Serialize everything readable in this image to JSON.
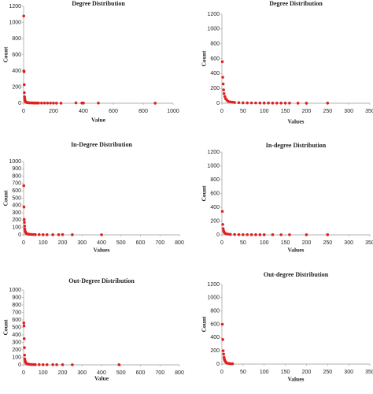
{
  "chart_data": [
    {
      "type": "scatter",
      "title": "Degree Distribution",
      "x_label": "Value",
      "y_label": "Count",
      "color": "#e02020",
      "x": [
        1,
        2,
        3,
        4,
        5,
        6,
        7,
        8,
        9,
        10,
        12,
        14,
        16,
        18,
        20,
        25,
        30,
        35,
        40,
        50,
        60,
        70,
        80,
        90,
        100,
        120,
        140,
        160,
        180,
        200,
        220,
        250,
        350,
        390,
        400,
        500,
        880
      ],
      "values": [
        1080,
        400,
        390,
        230,
        130,
        80,
        60,
        45,
        35,
        28,
        22,
        18,
        15,
        12,
        10,
        8,
        7,
        6,
        5,
        4,
        4,
        3,
        3,
        3,
        2,
        2,
        2,
        2,
        2,
        2,
        1,
        1,
        5,
        3,
        2,
        2,
        1
      ],
      "xlim": [
        0,
        1000
      ],
      "xticks": [
        0,
        200,
        400,
        600,
        800,
        1000
      ],
      "ylim": [
        0,
        1200
      ],
      "yticks": [
        0,
        200,
        400,
        600,
        800,
        1000,
        1200
      ]
    },
    {
      "type": "scatter",
      "title": "Degree Distribution",
      "x_label": "Values",
      "y_label": "Count",
      "color": "#e02020",
      "x": [
        1,
        2,
        3,
        4,
        5,
        7,
        9,
        12,
        15,
        20,
        25,
        30,
        40,
        50,
        60,
        70,
        80,
        90,
        100,
        110,
        120,
        130,
        140,
        150,
        160,
        180,
        200,
        250
      ],
      "values": [
        560,
        350,
        260,
        180,
        130,
        90,
        60,
        40,
        25,
        18,
        14,
        10,
        8,
        6,
        5,
        4,
        4,
        3,
        3,
        3,
        2,
        2,
        2,
        2,
        2,
        1,
        1,
        2
      ],
      "xlim": [
        0,
        350
      ],
      "xticks": [
        0,
        50,
        100,
        150,
        200,
        250,
        300,
        350
      ],
      "ylim": [
        0,
        1200
      ],
      "yticks": [
        0,
        200,
        400,
        600,
        800,
        1000,
        1200
      ]
    },
    {
      "type": "scatter",
      "title": "In-Degree Distribution",
      "x_label": "Values",
      "y_label": "Count",
      "color": "#e02020",
      "x": [
        1,
        2,
        3,
        4,
        5,
        6,
        8,
        10,
        12,
        15,
        20,
        25,
        30,
        40,
        50,
        60,
        80,
        100,
        120,
        150,
        180,
        200,
        250,
        400
      ],
      "values": [
        670,
        380,
        210,
        170,
        120,
        80,
        50,
        35,
        25,
        18,
        12,
        9,
        7,
        5,
        4,
        3,
        3,
        2,
        2,
        2,
        2,
        3,
        2,
        1
      ],
      "xlim": [
        0,
        800
      ],
      "xticks": [
        0,
        100,
        200,
        300,
        400,
        500,
        600,
        700,
        800
      ],
      "ylim": [
        0,
        1000
      ],
      "yticks": [
        0,
        100,
        200,
        300,
        400,
        500,
        600,
        700,
        800,
        900,
        1000
      ]
    },
    {
      "type": "scatter",
      "title": "In-degree Distribution",
      "x_label": "Values",
      "y_label": "Count",
      "color": "#e02020",
      "x": [
        1,
        2,
        3,
        4,
        5,
        7,
        10,
        15,
        20,
        30,
        40,
        50,
        60,
        70,
        80,
        90,
        100,
        120,
        140,
        160,
        200,
        250
      ],
      "values": [
        340,
        150,
        90,
        60,
        40,
        25,
        15,
        10,
        7,
        5,
        4,
        3,
        3,
        2,
        2,
        2,
        2,
        2,
        1,
        1,
        1,
        2
      ],
      "xlim": [
        0,
        350
      ],
      "xticks": [
        0,
        50,
        100,
        150,
        200,
        250,
        300,
        350
      ],
      "ylim": [
        0,
        1200
      ],
      "yticks": [
        0,
        200,
        400,
        600,
        800,
        1000,
        1200
      ]
    },
    {
      "type": "scatter",
      "title": "Out-Degree Distribution",
      "x_label": "Value",
      "y_label": "Count",
      "color": "#e02020",
      "x": [
        1,
        2,
        3,
        4,
        5,
        6,
        8,
        10,
        12,
        15,
        20,
        25,
        30,
        40,
        50,
        60,
        80,
        100,
        120,
        150,
        170,
        200,
        250,
        490
      ],
      "values": [
        560,
        520,
        350,
        230,
        130,
        80,
        50,
        35,
        25,
        18,
        12,
        9,
        7,
        5,
        4,
        3,
        3,
        2,
        2,
        2,
        2,
        2,
        1,
        2
      ],
      "xlim": [
        0,
        800
      ],
      "xticks": [
        0,
        100,
        200,
        300,
        400,
        500,
        600,
        700,
        800
      ],
      "ylim": [
        0,
        1000
      ],
      "yticks": [
        0,
        100,
        200,
        300,
        400,
        500,
        600,
        700,
        800,
        900,
        1000
      ]
    },
    {
      "type": "scatter",
      "title": "Out-degree Distribution",
      "x_label": "Values",
      "y_label": "Count",
      "color": "#e02020",
      "x": [
        1,
        2,
        3,
        4,
        5,
        6,
        7,
        8,
        10,
        12,
        15,
        18,
        20,
        25
      ],
      "values": [
        600,
        370,
        200,
        150,
        100,
        70,
        50,
        40,
        25,
        15,
        10,
        7,
        5,
        5
      ],
      "xlim": [
        0,
        350
      ],
      "xticks": [
        0,
        50,
        100,
        150,
        200,
        250,
        300,
        350
      ],
      "ylim": [
        0,
        1200
      ],
      "yticks": [
        0,
        200,
        400,
        600,
        800,
        1000,
        1200
      ]
    }
  ]
}
